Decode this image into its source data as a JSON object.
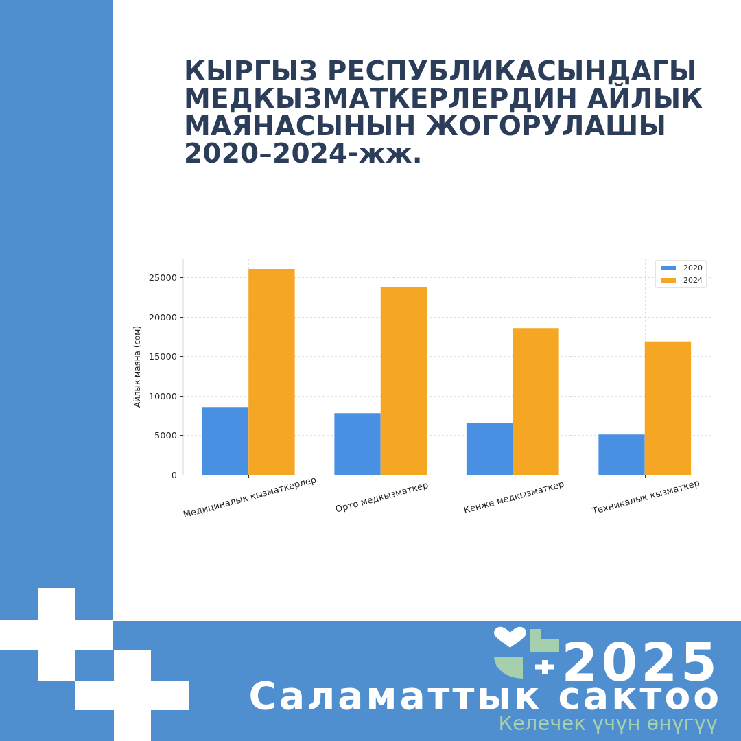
{
  "chart_data": {
    "type": "bar",
    "title": "КЫРГЫЗ РЕСПУБЛИКАСЫНДАГЫ\nМЕДКЫЗМАТКЕРЛЕРДИН АЙЛЫК\nМАЯНАСЫНЫН ЖОГОРУЛАШЫ\n2020–2024-жж.",
    "categories": [
      "Медициналык кызматкерлер",
      "Орто медкызматкер",
      "Кенже медкызматкер",
      "Техникалык кызматкер"
    ],
    "series": [
      {
        "name": "2020",
        "color": "#4a90e2",
        "values": [
          8600,
          7800,
          6600,
          5100
        ]
      },
      {
        "name": "2024",
        "color": "#f5a623",
        "values": [
          26100,
          23800,
          18600,
          16900
        ]
      }
    ],
    "ylabel": "Айлык маяна (сом)",
    "ylim": [
      0,
      27400
    ],
    "yticks": [
      0,
      5000,
      10000,
      15000,
      20000,
      25000
    ],
    "grid": true,
    "legend": "top right",
    "annotations": [
      "2025",
      "Саламаттык сактоо",
      "Келечек үчүн өнүгүү"
    ]
  }
}
